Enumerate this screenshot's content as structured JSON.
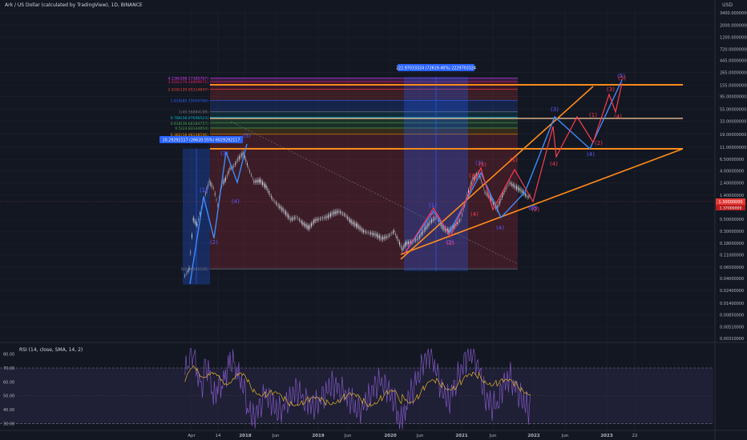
{
  "header": {
    "title": "Ark / US Dollar (calculated by TradingView), 1D, BINANCE",
    "currency": "USD"
  },
  "rsi_panel": {
    "title": "RSI (14, close, SMA, 14, 2)"
  },
  "colors": {
    "background": "#131722",
    "candle_up": "#c8c8c8",
    "candle_down": "#c8c8c8",
    "orange": "#ff8c1a",
    "blue_wave": "#3d8bff",
    "red_wave": "#ff3b4f",
    "purple_label": "#5b5bff",
    "price_badge": "#e53935",
    "rsi_line": "#7e57c2",
    "rsi_ma": "#ffca28"
  },
  "chart_data": [
    {
      "type": "line",
      "title": "Ark / US Dollar (calculated by TradingView), 1D, BINANCE",
      "y_scale": "log",
      "ylim": [
        0.0015,
        5000
      ],
      "y_ticks": [
        "3400.00000000",
        "2000.00000000",
        "1200.00000000",
        "720.00000000",
        "445.00000000",
        "265.00000000",
        "155.00000000",
        "95.00000000",
        "55.00000000",
        "33.00000000",
        "19.00000000",
        "11.00000000",
        "6.50000000",
        "4.00000000",
        "2.40000000",
        "1.40000000",
        "0.50000000",
        "0.30000000",
        "0.18000000",
        "0.11000000",
        "0.06500000",
        "0.04000000",
        "0.02400000",
        "0.01400000",
        "0.00850000",
        "0.00510000",
        "0.00310000"
      ],
      "x_ticks": [
        "Apr",
        "14",
        "2018",
        "Jun",
        "2019",
        "Jun",
        "2020",
        "Jun",
        "2021",
        "Jun",
        "2022",
        "Jun",
        "2023",
        "22"
      ],
      "current_price": "1.30000000",
      "current_price_second": "1.37000000",
      "fib_levels": [
        {
          "label": "4.236(208.17385767)",
          "value": 208.17,
          "color": "#e040fb"
        },
        {
          "label": "3.618(179.34809972)",
          "value": 179.35,
          "color": "#e91e63"
        },
        {
          "label": "2.618(129.65314847)",
          "value": 129.65,
          "color": "#f44336"
        },
        {
          "label": "1.618(80.15659760)",
          "value": 80.16,
          "color": "#2962ff"
        },
        {
          "label": "1(49.56884188)",
          "value": 49.57,
          "color": "#787b86"
        },
        {
          "label": "0.786(38.97696523)",
          "value": 38.98,
          "color": "#00bcd4"
        },
        {
          "label": "0.618(30.66184757)",
          "value": 30.66,
          "color": "#4caf50"
        },
        {
          "label": "0.5(24.83144654)",
          "value": 24.83,
          "color": "#4caf50"
        },
        {
          "label": "0.382(18.98108596)",
          "value": 18.98,
          "color": "#ff9800"
        },
        {
          "label": "0(0.06040100)",
          "value": 0.0604,
          "color": "#787b86"
        }
      ],
      "measure_labels": [
        "10.29292117 (26620.55%) 6029292117",
        "222.97033324 (72619.40%) 2229703324"
      ],
      "wave_labels_blue": [
        "(1)",
        "(2)",
        "(3)",
        "(4)",
        "(5)",
        "(1)",
        "(2)",
        "(3)",
        "(4)",
        "(5)",
        "(2)",
        "(3)",
        "(4)",
        "(5)"
      ],
      "wave_labels_red": [
        "(1)",
        "(2)",
        "(3)",
        "(4)",
        "(5)",
        "(1)",
        "(2)",
        "(1)",
        "(2)",
        "(3)",
        "(4)",
        "(5)"
      ],
      "series": [
        {
          "name": "ARKUSD",
          "x": [
            "2017-03-20",
            "2017-04-10",
            "2017-05-01",
            "2017-05-20",
            "2017-06-10",
            "2017-07-01",
            "2017-07-20",
            "2017-08-10",
            "2017-09-01",
            "2017-09-20",
            "2017-10-10",
            "2017-11-01",
            "2017-11-20",
            "2017-12-10",
            "2018-01-07",
            "2018-02-01",
            "2018-03-01",
            "2018-04-01",
            "2018-05-01",
            "2018-06-01",
            "2018-07-01",
            "2018-08-01",
            "2018-09-01",
            "2018-10-01",
            "2018-11-01",
            "2018-12-01",
            "2019-01-01",
            "2019-02-01",
            "2019-03-01",
            "2019-04-01",
            "2019-05-01",
            "2019-06-01",
            "2019-07-01",
            "2019-08-01",
            "2019-09-01",
            "2019-10-01",
            "2019-11-01",
            "2019-12-01",
            "2020-01-01",
            "2020-02-01",
            "2020-03-13",
            "2020-04-01",
            "2020-05-01",
            "2020-06-01",
            "2020-07-01",
            "2020-08-01",
            "2020-09-01",
            "2020-10-01",
            "2020-11-01",
            "2020-12-01",
            "2021-01-01",
            "2021-02-01",
            "2021-03-01",
            "2021-04-01",
            "2021-05-01",
            "2021-06-01",
            "2021-07-01",
            "2021-08-01",
            "2021-09-01",
            "2021-10-01",
            "2021-11-01",
            "2021-12-01",
            "2021-12-20"
          ],
          "values": [
            0.045,
            0.06,
            0.5,
            0.4,
            0.8,
            1.5,
            2.5,
            1.9,
            0.9,
            2.2,
            2.8,
            4.4,
            4.8,
            6.5,
            8.5,
            4.5,
            2.5,
            2.6,
            2.0,
            1.2,
            0.9,
            0.7,
            0.5,
            0.55,
            0.42,
            0.35,
            0.48,
            0.52,
            0.55,
            0.65,
            0.7,
            0.6,
            0.45,
            0.38,
            0.3,
            0.28,
            0.26,
            0.22,
            0.24,
            0.3,
            0.14,
            0.18,
            0.19,
            0.22,
            0.32,
            0.45,
            0.55,
            0.35,
            0.3,
            0.38,
            0.5,
            1.4,
            2.8,
            3.6,
            1.6,
            1.2,
            0.8,
            1.5,
            2.4,
            2.0,
            1.7,
            1.3,
            1.4
          ]
        }
      ]
    },
    {
      "type": "line",
      "title": "RSI (14, close, SMA, 14, 2)",
      "ylim": [
        25,
        85
      ],
      "y_ticks": [
        "80.00",
        "70.00",
        "60.00",
        "50.00",
        "40.00",
        "30.00"
      ],
      "series": [
        {
          "name": "RSI",
          "values": [
            65,
            74,
            82,
            70,
            58,
            72,
            64,
            45,
            55,
            60,
            68,
            78,
            71,
            62,
            55,
            42,
            38,
            45,
            51,
            40,
            36,
            44,
            52,
            58,
            47,
            41,
            39,
            48,
            57,
            62,
            55,
            49,
            43,
            38,
            45,
            53,
            60,
            58,
            51,
            44,
            30,
            48,
            56,
            63,
            72,
            79,
            68,
            55,
            49,
            58,
            66,
            76,
            80,
            73,
            52,
            45,
            40,
            55,
            62,
            58,
            51,
            43,
            42
          ]
        },
        {
          "name": "RSI-based MA",
          "values": [
            60,
            64,
            68,
            69,
            67,
            67,
            66,
            63,
            61,
            60,
            61,
            63,
            64,
            63,
            62,
            59,
            56,
            54,
            52,
            50,
            48,
            46,
            46,
            47,
            47,
            46,
            45,
            45,
            46,
            48,
            49,
            49,
            48,
            47,
            46,
            46,
            48,
            49,
            50,
            50,
            48,
            48,
            49,
            51,
            54,
            57,
            59,
            59,
            58,
            58,
            59,
            61,
            63,
            65,
            63,
            61,
            59,
            58,
            58,
            58,
            57,
            55,
            53
          ]
        }
      ]
    }
  ]
}
